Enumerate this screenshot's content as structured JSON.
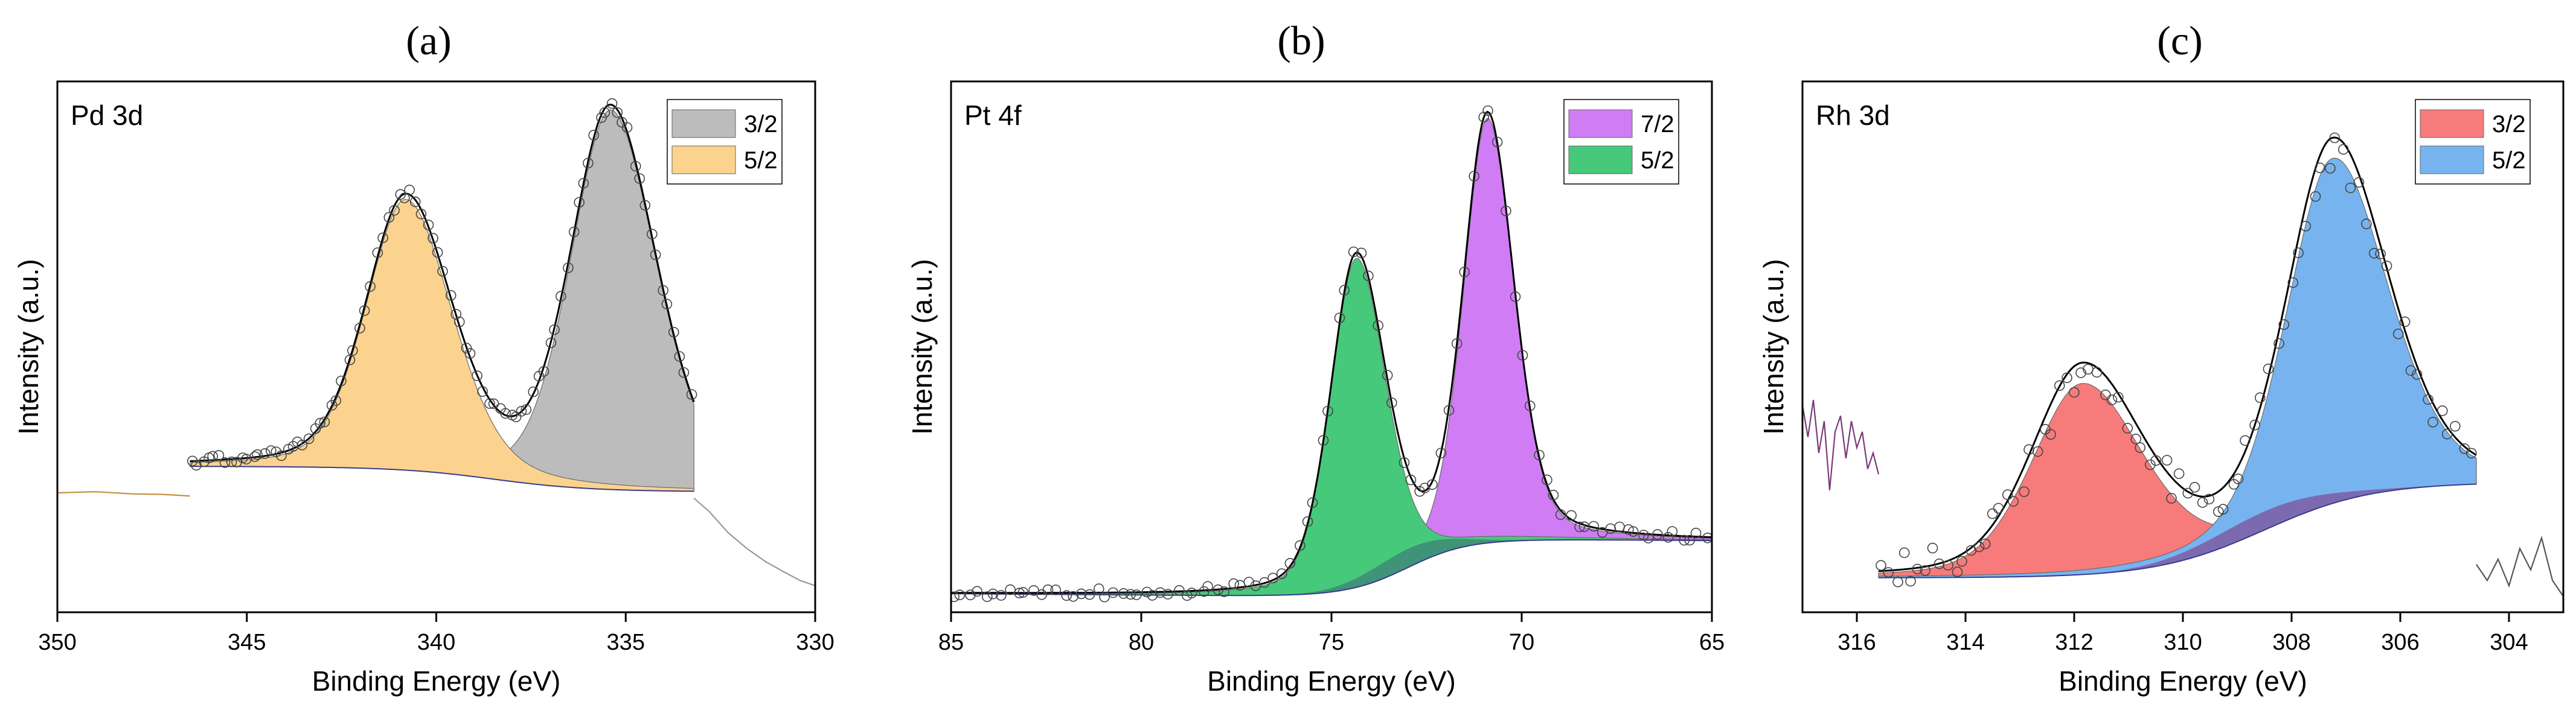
{
  "chart_data": [
    {
      "type": "line",
      "panel_letter": "(a)",
      "panel_label": "Pd 3d",
      "xlabel": "Binding Energy (eV)",
      "ylabel": "Intensity (a.u.)",
      "xlim": [
        350,
        330
      ],
      "x_reversed": true,
      "ylim": [
        0,
        1
      ],
      "xticks": [
        350,
        345,
        340,
        335,
        330
      ],
      "xtick_labels": [
        "350",
        "345",
        "340",
        "335",
        "330"
      ],
      "legend": {
        "position": "top-right",
        "entries": [
          {
            "label": "3/2",
            "color": "#bcbcbc"
          },
          {
            "label": "5/2",
            "color": "#fcd38e"
          }
        ]
      },
      "data_range": [
        346.5,
        333.2
      ],
      "background": {
        "start": 0.23,
        "slope": -0.0002,
        "step": 0.045,
        "step_center": 338.5,
        "step_width": 2.5
      },
      "peaks": [
        {
          "name": "3/2",
          "center": 335.4,
          "height": 0.715,
          "fwhm": 2.5,
          "mix": 0.3,
          "tail": 1.15,
          "color": "#bcbcbc"
        },
        {
          "name": "5/2",
          "center": 340.8,
          "height": 0.51,
          "fwhm": 2.5,
          "mix": 0.3,
          "tail": 1.15,
          "color": "#fcd38e"
        }
      ],
      "extra_lines": [
        {
          "name": "low-energy tail",
          "x": [
            333.2,
            332.8,
            332.3,
            331.8,
            331.3,
            330.8,
            330.4,
            330.0
          ],
          "y": [
            0.215,
            0.19,
            0.15,
            0.12,
            0.095,
            0.075,
            0.06,
            0.05
          ],
          "color": "#999999"
        },
        {
          "name": "high-energy tail",
          "x": [
            350.0,
            349.0,
            348.0,
            347.2,
            346.5
          ],
          "y": [
            0.225,
            0.227,
            0.223,
            0.222,
            0.219
          ],
          "color": "#c0913a"
        }
      ],
      "points_count": 90
    },
    {
      "type": "line",
      "panel_letter": "(b)",
      "panel_label": "Pt 4f",
      "xlabel": "Binding Energy (eV)",
      "ylabel": "Intensity (a.u.)",
      "xlim": [
        85,
        65
      ],
      "x_reversed": true,
      "ylim": [
        0,
        1
      ],
      "xticks": [
        85,
        80,
        75,
        70,
        65
      ],
      "xtick_labels": [
        "85",
        "80",
        "75",
        "70",
        "65"
      ],
      "legend": {
        "position": "top-right",
        "entries": [
          {
            "label": "7/2",
            "color": "#d07cf5"
          },
          {
            "label": "5/2",
            "color": "#46c97a"
          }
        ]
      },
      "data_range": [
        85.0,
        65.0
      ],
      "background": {
        "start": 0.145,
        "slope": -0.0005,
        "step": -0.11,
        "step_center": 73.0,
        "step_width": 1.6
      },
      "peaks": [
        {
          "name": "7/2",
          "center": 70.9,
          "height": 0.8,
          "fwhm": 1.5,
          "mix": 0.3,
          "tail": 1.1,
          "color": "#d07cf5"
        },
        {
          "name": "5/2",
          "center": 74.35,
          "height": 0.62,
          "fwhm": 1.6,
          "mix": 0.3,
          "tail": 1.15,
          "color": "#46c97a"
        }
      ],
      "overlap_color": "#3e8a78",
      "extra_lines": [],
      "points_count": 95
    },
    {
      "type": "line",
      "panel_letter": "(c)",
      "panel_label": "Rh 3d",
      "xlabel": "Binding Energy (eV)",
      "ylabel": "Intensity (a.u.)",
      "xlim": [
        317,
        303
      ],
      "x_reversed": true,
      "ylim": [
        0,
        1
      ],
      "xticks": [
        316,
        314,
        312,
        310,
        308,
        306,
        304
      ],
      "xtick_labels": [
        "316",
        "314",
        "312",
        "310",
        "308",
        "306",
        "304"
      ],
      "legend": {
        "position": "top-right",
        "entries": [
          {
            "label": "3/2",
            "color": "#f77b7b"
          },
          {
            "label": "5/2",
            "color": "#77b4ef"
          }
        ]
      },
      "data_range": [
        315.6,
        304.6
      ],
      "background": {
        "start": 0.245,
        "slope": 0.0,
        "step": -0.18,
        "step_center": 308.5,
        "step_width": 2.0
      },
      "peaks": [
        {
          "name": "3/2",
          "center": 311.85,
          "height": 0.36,
          "fwhm": 2.2,
          "mix": 0.3,
          "tail": 1.2,
          "color": "#f77b7b"
        },
        {
          "name": "5/2",
          "center": 307.25,
          "height": 0.65,
          "fwhm": 2.0,
          "mix": 0.3,
          "tail": 1.2,
          "color": "#77b4ef"
        }
      ],
      "overlap_color": "#7d5da6",
      "envelope_offset": 0.03,
      "extra_lines": [
        {
          "name": "noisy high-energy edge",
          "x": [
            317.0,
            316.9,
            316.8,
            316.7,
            316.6,
            316.5,
            316.4,
            316.3,
            316.2,
            316.1,
            316.0,
            315.9,
            315.8,
            315.7,
            315.6
          ],
          "y": [
            0.39,
            0.33,
            0.4,
            0.3,
            0.36,
            0.23,
            0.34,
            0.37,
            0.29,
            0.36,
            0.31,
            0.34,
            0.27,
            0.3,
            0.26
          ],
          "color": "#7a3a7a"
        },
        {
          "name": "noisy low-energy edge",
          "x": [
            304.6,
            304.4,
            304.2,
            304.0,
            303.8,
            303.6,
            303.4,
            303.2,
            303.0
          ],
          "y": [
            0.09,
            0.06,
            0.1,
            0.05,
            0.12,
            0.08,
            0.14,
            0.06,
            0.03
          ],
          "color": "#555555"
        }
      ],
      "points_count": 80
    }
  ]
}
